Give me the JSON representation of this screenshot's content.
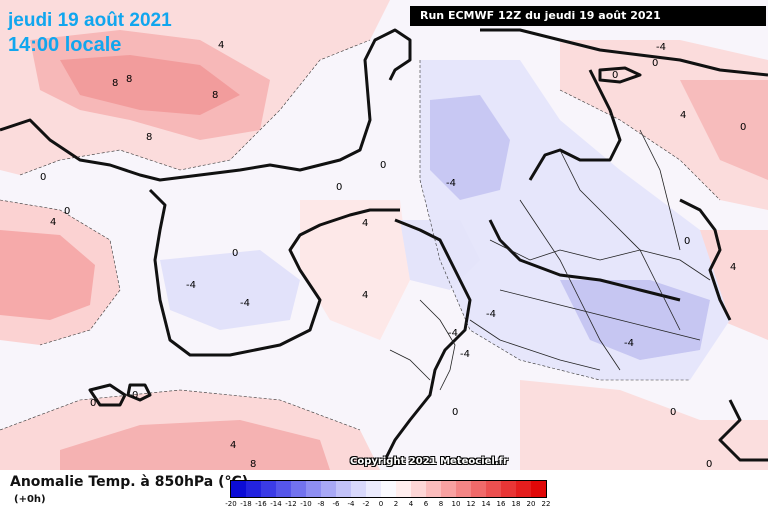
{
  "header": {
    "run_banner": "Run ECMWF 12Z du jeudi 19 août 2021",
    "date_title": "jeudi 19 août 2021",
    "hour_title": "14:00 locale"
  },
  "map": {
    "copyright": "Copyright 2021 Meteociel.fr",
    "contour_labels": [
      "0",
      "0",
      "0",
      "0",
      "0",
      "0",
      "0",
      "0",
      "0",
      "0",
      "0",
      "0",
      "0",
      "0",
      "0",
      "4",
      "4",
      "4",
      "4",
      "4",
      "4",
      "4",
      "-4",
      "-4",
      "-4",
      "-4",
      "-4",
      "-4",
      "-4",
      "-4",
      "8",
      "8",
      "8",
      "8",
      "8"
    ]
  },
  "legend": {
    "title": "Anomalie Temp. à 850hPa (°C)",
    "step": "(+0h)",
    "ticks": [
      "-20",
      "-18",
      "-16",
      "-14",
      "-12",
      "-10",
      "-8",
      "-6",
      "-4",
      "-2",
      "0",
      "2",
      "4",
      "6",
      "8",
      "10",
      "12",
      "14",
      "16",
      "18",
      "20",
      "22"
    ],
    "colors": [
      "#0c0cd6",
      "#2323e0",
      "#3b3be6",
      "#5656ea",
      "#7272ee",
      "#8e8ef2",
      "#a8a8f5",
      "#c2c2f8",
      "#d8d8fb",
      "#ebebfd",
      "#fafaff",
      "#ffeeee",
      "#fdd6d6",
      "#fbbcbc",
      "#f8a1a1",
      "#f48585",
      "#f06a6a",
      "#ec5050",
      "#e83636",
      "#e41e1e",
      "#e00808"
    ]
  }
}
